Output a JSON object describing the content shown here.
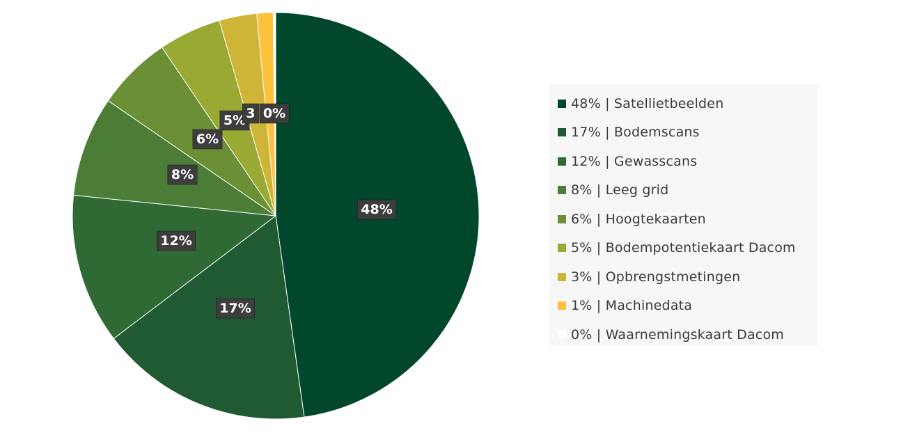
{
  "chart_data": {
    "type": "pie",
    "slices": [
      {
        "value": 48,
        "label": "48%",
        "legend": "48% | Satellietbeelden",
        "color": "#00472b"
      },
      {
        "value": 17,
        "label": "17%",
        "legend": "17% | Bodemscans",
        "color": "#1f5a32"
      },
      {
        "value": 12,
        "label": "12%",
        "legend": "12% | Gewasscans",
        "color": "#2f6a35"
      },
      {
        "value": 8,
        "label": "8%",
        "legend": "8% | Leeg grid",
        "color": "#4b7d36"
      },
      {
        "value": 6,
        "label": "6%",
        "legend": "6% | Hoogtekaarten",
        "color": "#6a8f35"
      },
      {
        "value": 5,
        "label": "5%",
        "legend": "5% | Bodempotentiekaart Dacom",
        "color": "#9aa834"
      },
      {
        "value": 3,
        "label": "3",
        "legend": "3% | Opbrengstmetingen",
        "color": "#cfb537"
      },
      {
        "value": 1.3,
        "label": "",
        "legend": "1% | Machinedata",
        "color": "#fcc23b"
      },
      {
        "value": 0.2,
        "label": "0%",
        "legend": "0% | Waarnemingskaart Dacom",
        "color": "#ffffff"
      }
    ],
    "legend_position": "right"
  }
}
